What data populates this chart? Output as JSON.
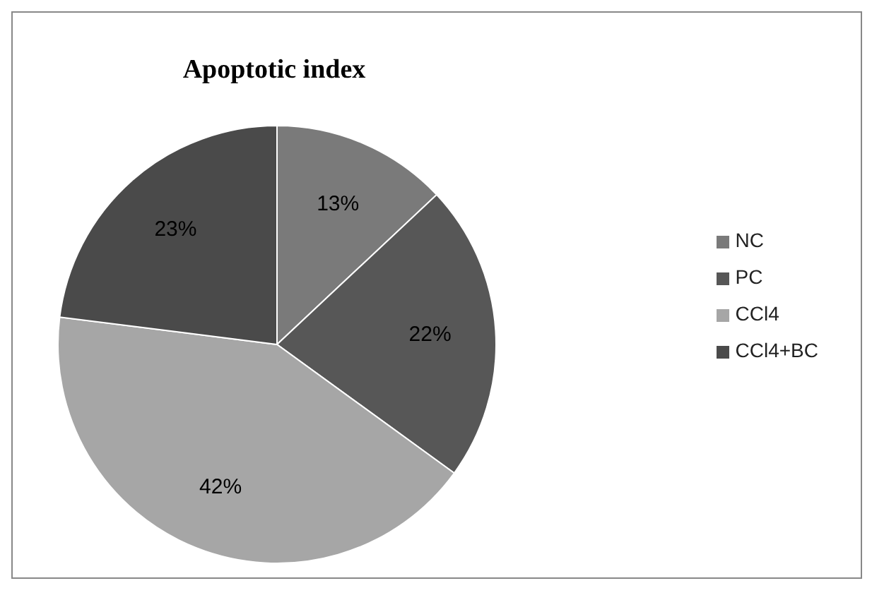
{
  "chart_data": {
    "type": "pie",
    "title": "Apoptotic index",
    "categories": [
      "NC",
      "PC",
      "CCl4",
      "CCl4+BC"
    ],
    "values": [
      13,
      22,
      42,
      23
    ],
    "value_labels": [
      "13%",
      "22%",
      "42%",
      "23%"
    ],
    "colors": [
      "#7a7a7a",
      "#575757",
      "#a6a6a6",
      "#4a4a4a"
    ],
    "legend": "right"
  }
}
